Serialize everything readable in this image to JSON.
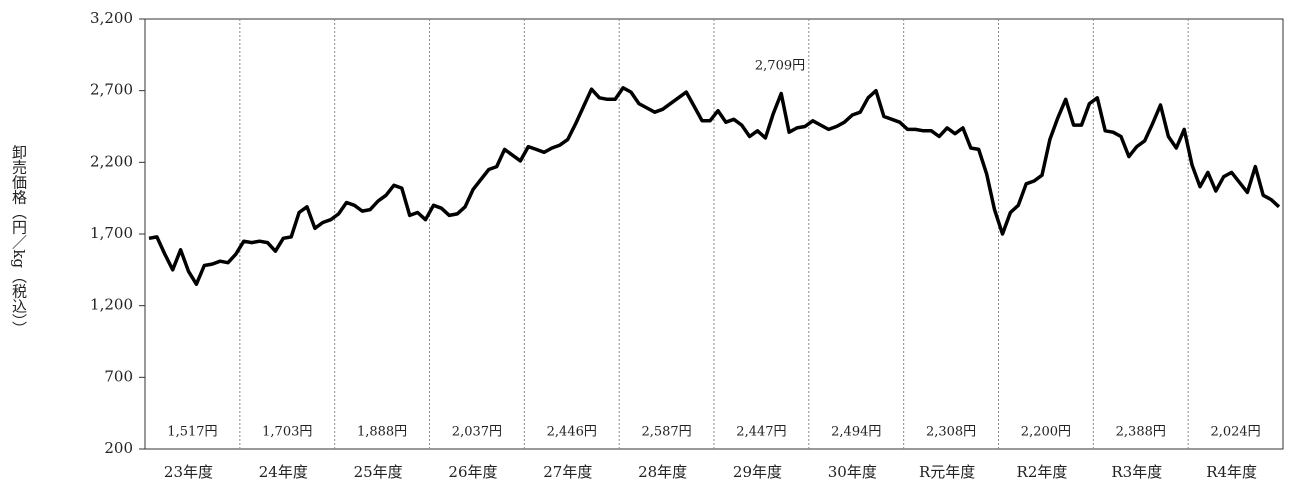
{
  "chart_data": {
    "type": "line",
    "y_label": "卸売価格（円／kg（税込））",
    "categories": [
      null,
      null,
      null,
      null,
      null,
      "23年度",
      null,
      null,
      null,
      null,
      null,
      null,
      null,
      null,
      null,
      null,
      null,
      "24年度",
      null,
      null,
      null,
      null,
      null,
      null,
      null,
      null,
      null,
      null,
      null,
      "25年度",
      null,
      null,
      null,
      null,
      null,
      null,
      null,
      null,
      null,
      null,
      null,
      "26年度",
      null,
      null,
      null,
      null,
      null,
      null,
      null,
      null,
      null,
      null,
      null,
      "27年度",
      null,
      null,
      null,
      null,
      null,
      null,
      null,
      null,
      null,
      null,
      null,
      "28年度",
      null,
      null,
      null,
      null,
      null,
      null,
      null,
      null,
      null,
      null,
      null,
      "29年度",
      null,
      null,
      null,
      null,
      null,
      null,
      null,
      null,
      null,
      null,
      null,
      "30年度",
      null,
      null,
      null,
      null,
      null,
      null,
      null,
      null,
      null,
      null,
      null,
      "R元年度",
      null,
      null,
      null,
      null,
      null,
      null,
      null,
      null,
      null,
      null,
      null,
      "R2年度",
      null,
      null,
      null,
      null,
      null,
      null,
      null,
      null,
      null,
      null,
      null,
      "R3年度",
      null,
      null,
      null,
      null,
      null,
      null,
      null,
      null,
      null,
      null,
      null,
      "R4年度",
      null,
      null,
      null,
      null,
      null,
      null
    ],
    "series": [
      {
        "color": "#000000",
        "values": [
          1670,
          1680,
          1560,
          1450,
          1590,
          1440,
          1350,
          1480,
          1490,
          1510,
          1500,
          1560,
          1650,
          1640,
          1650,
          1640,
          1580,
          1670,
          1680,
          1850,
          1890,
          1740,
          1780,
          1800,
          1840,
          1920,
          1900,
          1860,
          1870,
          1930,
          1970,
          2040,
          2020,
          1830,
          1850,
          1800,
          1900,
          1880,
          1830,
          1840,
          1890,
          2010,
          2080,
          2150,
          2170,
          2290,
          2250,
          2210,
          2310,
          2290,
          2270,
          2300,
          2320,
          2360,
          2470,
          2590,
          2710,
          2650,
          2640,
          2640,
          2720,
          2690,
          2610,
          2580,
          2550,
          2570,
          2610,
          2650,
          2690,
          2590,
          2490,
          2490,
          2560,
          2480,
          2500,
          2460,
          2380,
          2420,
          2370,
          2540,
          2680,
          2410,
          2440,
          2450,
          2490,
          2460,
          2430,
          2450,
          2480,
          2530,
          2550,
          2650,
          2700,
          2520,
          2500,
          2480,
          2430,
          2430,
          2420,
          2420,
          2380,
          2440,
          2400,
          2440,
          2300,
          2290,
          2120,
          1870,
          1700,
          1850,
          1900,
          2050,
          2070,
          2110,
          2360,
          2510,
          2640,
          2460,
          2460,
          2610,
          2650,
          2420,
          2410,
          2380,
          2240,
          2310,
          2350,
          2470,
          2600,
          2380,
          2300,
          2430,
          2180,
          2030,
          2130,
          2000,
          2100,
          2130,
          2060,
          1990,
          2170,
          1970,
          1940,
          1890
        ]
      }
    ],
    "year_averages": [
      "1,517円",
      "1,703円",
      "1,888円",
      "2,037円",
      "2,446円",
      "2,587円",
      "2,447円",
      "2,494円",
      "2,308円",
      "2,200円",
      "2,388円",
      "2,024円"
    ],
    "peak_label": "2,709円",
    "ylim": [
      200,
      3200
    ],
    "yticks": [
      200,
      700,
      {
        "value": 1200,
        "label": "1,200"
      },
      {
        "value": 1700,
        "label": "1,700"
      },
      {
        "value": 2200,
        "label": "2,200"
      },
      {
        "value": 2700,
        "label": "2,700"
      },
      {
        "value": 3200,
        "label": "3,200"
      }
    ]
  }
}
